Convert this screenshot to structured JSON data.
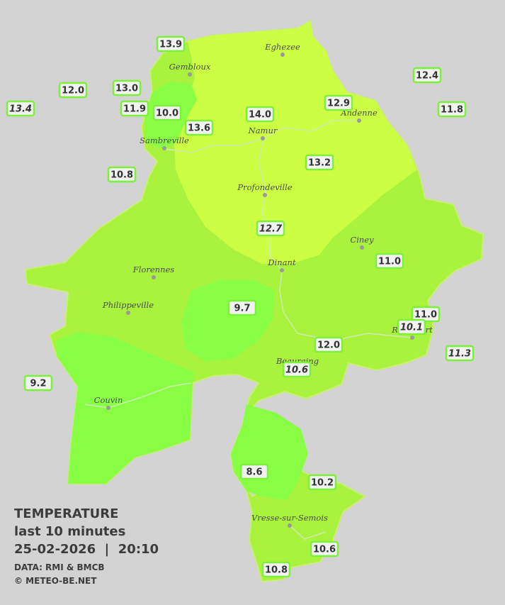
{
  "header": {
    "title": "TEMPERATURE",
    "subtitle": "last 10 minutes",
    "datetime": "25-02-2026  |  20:10",
    "source": "DATA: RMI & BMCB",
    "credit": "© METEO-BE.NET"
  },
  "towns": [
    "Eghezee",
    "Gembloux",
    "Andenne",
    "Namur",
    "Sambreville",
    "Profondeville",
    "Ciney",
    "Dinant",
    "Florennes",
    "Philippeville",
    "Rochefort",
    "Beauraing",
    "Couvin",
    "Vresse-sur-Semois"
  ],
  "stations": [
    {
      "value": "13.9"
    },
    {
      "value": "12.0"
    },
    {
      "value": "13.0"
    },
    {
      "value": "13.4",
      "italic": true
    },
    {
      "value": "11.9"
    },
    {
      "value": "10.0"
    },
    {
      "value": "13.6"
    },
    {
      "value": "14.0"
    },
    {
      "value": "12.9"
    },
    {
      "value": "12.4"
    },
    {
      "value": "11.8"
    },
    {
      "value": "10.8"
    },
    {
      "value": "13.2"
    },
    {
      "value": "12.7",
      "italic": true
    },
    {
      "value": "11.0"
    },
    {
      "value": "9.7"
    },
    {
      "value": "11.0"
    },
    {
      "value": "10.1",
      "italic": true
    },
    {
      "value": "12.0"
    },
    {
      "value": "10.6",
      "italic": true
    },
    {
      "value": "11.3",
      "italic": true
    },
    {
      "value": "9.2"
    },
    {
      "value": "8.6"
    },
    {
      "value": "10.2"
    },
    {
      "value": "10.6"
    },
    {
      "value": "10.8"
    }
  ]
}
